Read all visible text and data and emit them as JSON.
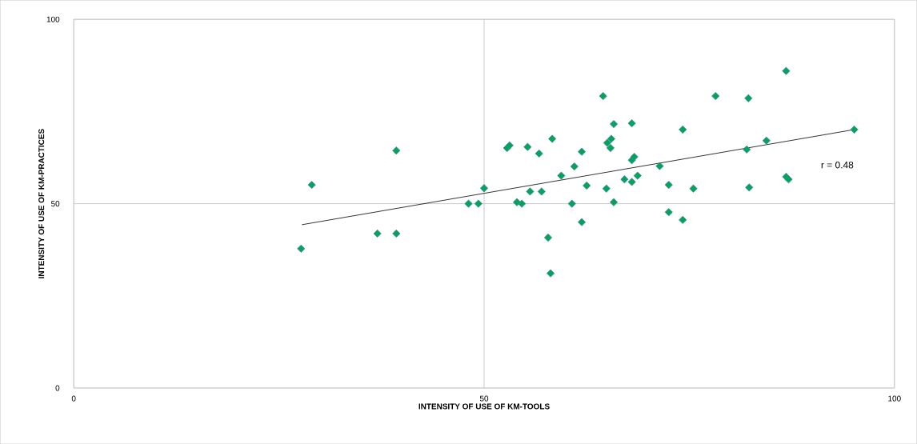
{
  "chart_data": {
    "type": "scatter",
    "xlabel": "INTENSITY OF USE OF KM-TOOLS",
    "ylabel": "INTENSITY OF USE OF KM-PRACTICES",
    "xlim": [
      0,
      100
    ],
    "ylim": [
      0,
      100
    ],
    "xticks": [
      0,
      50,
      100
    ],
    "yticks": [
      0,
      50,
      100
    ],
    "grid": true,
    "marker": "diamond",
    "annotations": [
      "r = 0.48"
    ],
    "series": [
      {
        "color": "#00a651",
        "x": [
          27.7,
          29.0,
          37.0,
          39.3,
          39.3,
          48.1,
          49.3,
          50.0,
          52.8,
          53.1,
          54.0,
          54.6,
          55.3,
          55.6,
          57.0,
          56.7,
          58.3,
          59.4,
          60.7,
          61.9,
          57.8,
          58.1,
          61.0,
          61.9,
          62.5,
          64.5,
          65.8,
          68.0,
          65.0,
          65.5,
          65.4,
          68.0,
          68.3,
          71.4,
          74.2,
          78.2,
          82.2,
          86.8,
          95.1,
          84.4,
          82.0,
          64.9,
          67.1,
          68.0,
          68.7,
          72.5,
          75.5,
          82.3,
          86.8,
          87.1,
          65.8,
          72.5,
          74.2
        ],
        "values": [
          37.8,
          55.1,
          41.9,
          41.9,
          64.4,
          50.0,
          50.0,
          54.2,
          65.1,
          65.8,
          50.4,
          50.0,
          65.4,
          53.3,
          53.3,
          63.6,
          67.6,
          57.6,
          50.0,
          45.0,
          40.8,
          31.1,
          60.1,
          64.1,
          54.9,
          79.2,
          71.6,
          71.8,
          66.5,
          67.6,
          65.1,
          61.8,
          62.7,
          60.2,
          70.1,
          79.2,
          78.6,
          86.0,
          70.1,
          67.1,
          64.7,
          54.1,
          56.6,
          55.9,
          57.6,
          55.1,
          54.1,
          54.4,
          57.3,
          56.6,
          50.4,
          47.7,
          45.6
        ]
      },
      {
        "type": "line",
        "color": "#000000",
        "marker": "none",
        "x": [
          27.8,
          95.1
        ],
        "values": [
          44.3,
          70.1
        ]
      }
    ]
  }
}
